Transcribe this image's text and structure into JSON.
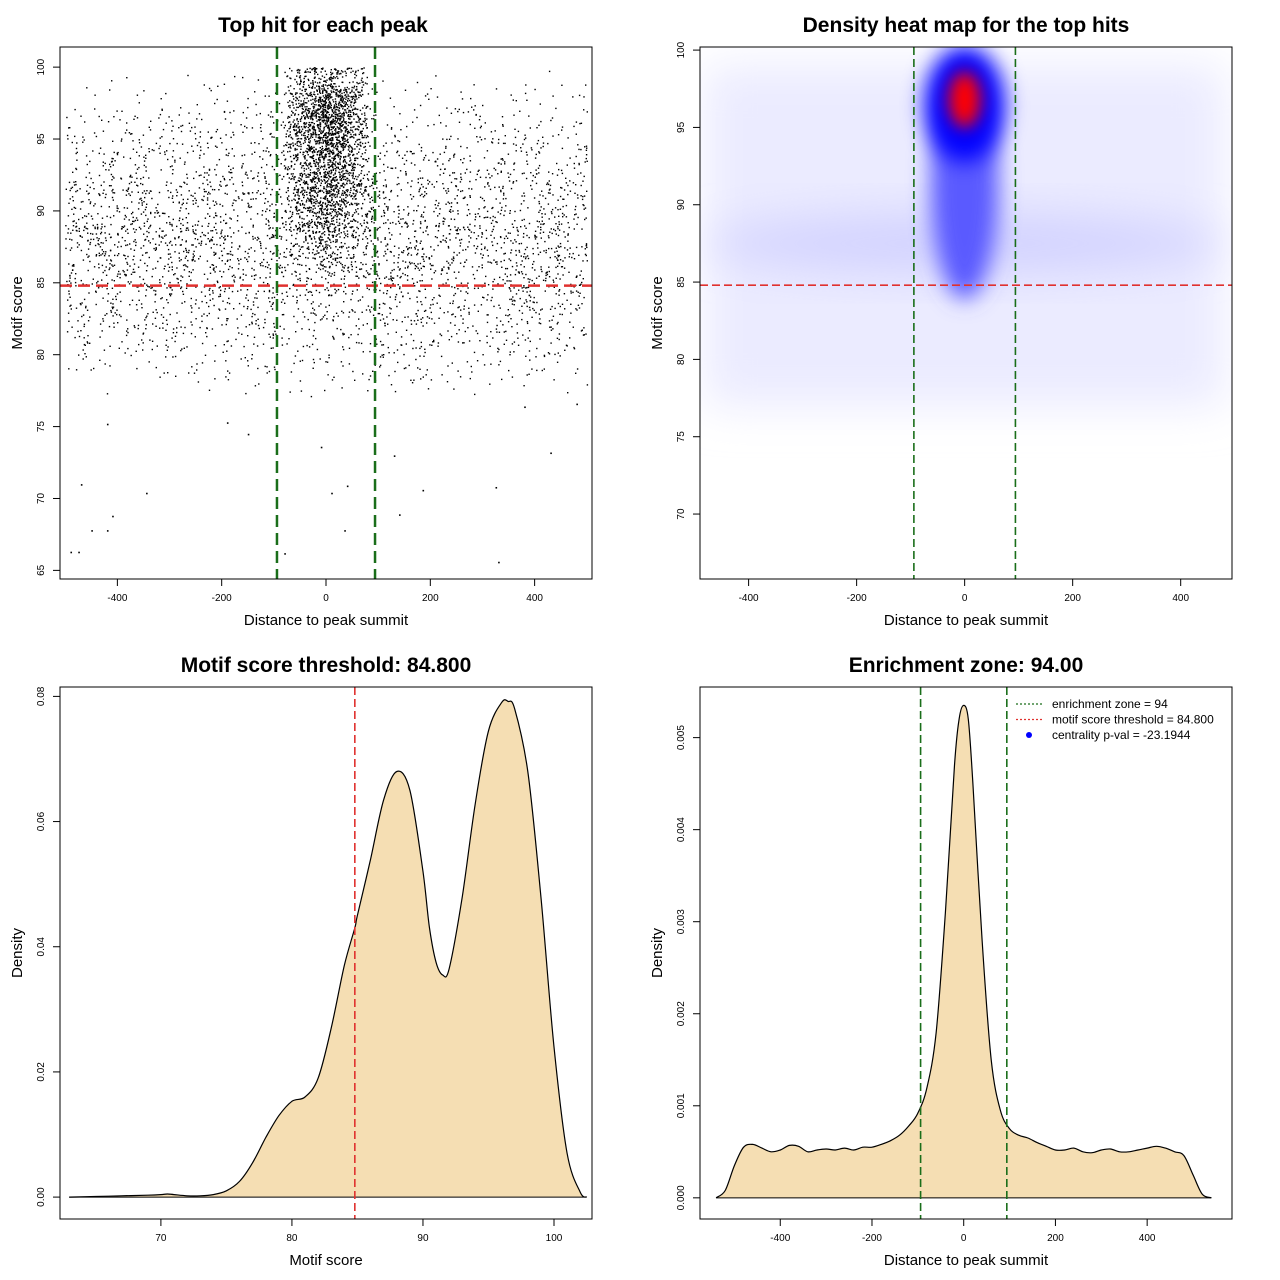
{
  "chart_data": [
    {
      "type": "scatter",
      "title": "Top hit for each peak",
      "xlabel": "Distance to peak summit",
      "ylabel": "Motif score",
      "xlim": [
        -510,
        510
      ],
      "ylim": [
        64.4,
        101.4
      ],
      "xticks": [
        -400,
        -200,
        0,
        200,
        400
      ],
      "xtick_labels": [
        "-400",
        "-200",
        "0",
        "200",
        "400"
      ],
      "yticks": [
        65,
        70,
        75,
        80,
        85,
        90,
        95,
        100
      ],
      "ytick_labels": [
        "65",
        "70",
        "75",
        "80",
        "85",
        "90",
        "95",
        "100"
      ],
      "hline": {
        "y": 84.8,
        "color": "#e0312f"
      },
      "vlines": [
        {
          "x": -94,
          "color": "#1a6e1a"
        },
        {
          "x": 94,
          "color": "#1a6e1a"
        }
      ],
      "point_color": "#000000",
      "background_points": {
        "x_range": [
          -500,
          500
        ],
        "y_range": [
          77,
          100
        ],
        "mode_y": 87.5
      },
      "central_points": {
        "x_range": [
          -90,
          90
        ],
        "y_range": [
          85,
          100
        ],
        "mode_y": 97
      },
      "outliers": [
        {
          "x": -490,
          "y": 66.3
        },
        {
          "x": -475,
          "y": 66.3
        },
        {
          "x": -450,
          "y": 67.8
        },
        {
          "x": -420,
          "y": 67.8
        },
        {
          "x": -410,
          "y": 68.8
        },
        {
          "x": -470,
          "y": 71.0
        },
        {
          "x": -345,
          "y": 70.4
        },
        {
          "x": -420,
          "y": 75.2
        },
        {
          "x": -190,
          "y": 75.3
        },
        {
          "x": -150,
          "y": 74.5
        },
        {
          "x": -80,
          "y": 66.2
        },
        {
          "x": 10,
          "y": 70.4
        },
        {
          "x": 40,
          "y": 70.9
        },
        {
          "x": 35,
          "y": 67.8
        },
        {
          "x": 130,
          "y": 73.0
        },
        {
          "x": 140,
          "y": 68.9
        },
        {
          "x": 185,
          "y": 70.6
        },
        {
          "x": 325,
          "y": 70.8
        },
        {
          "x": 330,
          "y": 65.6
        },
        {
          "x": 430,
          "y": 73.2
        },
        {
          "x": -10,
          "y": 73.6
        },
        {
          "x": 380,
          "y": 76.4
        },
        {
          "x": 480,
          "y": 76.6
        }
      ]
    },
    {
      "type": "heatmap",
      "title": "Density heat map for the top hits",
      "xlabel": "Distance to peak summit",
      "ylabel": "Motif score",
      "xlim": [
        -490,
        495
      ],
      "ylim": [
        65.8,
        100.2
      ],
      "xticks": [
        -400,
        -200,
        0,
        200,
        400
      ],
      "xtick_labels": [
        "-400",
        "-200",
        "0",
        "200",
        "400"
      ],
      "yticks": [
        70,
        75,
        80,
        85,
        90,
        95,
        100
      ],
      "ytick_labels": [
        "70",
        "75",
        "80",
        "85",
        "90",
        "95",
        "100"
      ],
      "hline": {
        "y": 84.8,
        "color": "#e0312f"
      },
      "vlines": [
        {
          "x": -94,
          "color": "#1a6e1a"
        },
        {
          "x": 94,
          "color": "#1a6e1a"
        }
      ],
      "color_scale": [
        "#ffffff",
        "#0000ff",
        "#ff0000"
      ],
      "hotspot": {
        "x": 0,
        "y": 96.8
      },
      "secondary_band_y": 87.5
    },
    {
      "type": "area",
      "title": "Motif score threshold: 84.800",
      "xlabel": "Motif score",
      "ylabel": "Density",
      "xlim": [
        62.3,
        102.9
      ],
      "ylim": [
        -0.0035,
        0.0815
      ],
      "xticks": [
        70,
        80,
        90,
        100
      ],
      "xtick_labels": [
        "70",
        "80",
        "90",
        "100"
      ],
      "yticks": [
        0,
        0.02,
        0.04,
        0.06,
        0.08
      ],
      "ytick_labels": [
        "0.00",
        "0.02",
        "0.04",
        "0.06",
        "0.08"
      ],
      "vline": {
        "x": 84.8,
        "color": "#e0312f"
      },
      "fill": "#f5deb3",
      "x": [
        63,
        65,
        67,
        69,
        70,
        70.5,
        71,
        72,
        73,
        74,
        75,
        76,
        77,
        78,
        79,
        80,
        81,
        82,
        83,
        84,
        84.8,
        85,
        86,
        87,
        88,
        89,
        90,
        90.5,
        91,
        91.5,
        92,
        93,
        94,
        95,
        96,
        96.5,
        97,
        98,
        99,
        100,
        101,
        102,
        102.5
      ],
      "y": [
        0.0,
        0.0001,
        0.0002,
        0.0003,
        0.0004,
        0.0005,
        0.0004,
        0.0002,
        0.0002,
        0.0004,
        0.001,
        0.0025,
        0.0055,
        0.0095,
        0.013,
        0.0153,
        0.016,
        0.019,
        0.027,
        0.037,
        0.043,
        0.045,
        0.054,
        0.0635,
        0.068,
        0.065,
        0.052,
        0.043,
        0.0375,
        0.0355,
        0.0365,
        0.048,
        0.063,
        0.0745,
        0.079,
        0.0792,
        0.078,
        0.068,
        0.048,
        0.024,
        0.007,
        0.0008,
        0.0
      ]
    },
    {
      "type": "area",
      "title": "Enrichment zone: 94.00",
      "xlabel": "Distance to peak summit",
      "ylabel": "Density",
      "xlim": [
        -575,
        585
      ],
      "ylim": [
        -0.00023,
        0.00555
      ],
      "xticks": [
        -400,
        -200,
        0,
        200,
        400
      ],
      "xtick_labels": [
        "-400",
        "-200",
        "0",
        "200",
        "400"
      ],
      "yticks": [
        0,
        0.001,
        0.002,
        0.003,
        0.004,
        0.005
      ],
      "ytick_labels": [
        "0.000",
        "0.001",
        "0.002",
        "0.003",
        "0.004",
        "0.005"
      ],
      "vlines": [
        {
          "x": -94,
          "color": "#1a6e1a"
        },
        {
          "x": 94,
          "color": "#1a6e1a"
        }
      ],
      "fill": "#f5deb3",
      "x": [
        -540,
        -520,
        -500,
        -480,
        -460,
        -440,
        -420,
        -400,
        -380,
        -360,
        -340,
        -320,
        -300,
        -280,
        -260,
        -240,
        -220,
        -200,
        -180,
        -160,
        -140,
        -120,
        -100,
        -80,
        -60,
        -40,
        -20,
        -10,
        0,
        10,
        20,
        40,
        60,
        80,
        100,
        120,
        140,
        160,
        180,
        200,
        220,
        240,
        260,
        280,
        300,
        320,
        340,
        360,
        380,
        400,
        420,
        440,
        460,
        480,
        500,
        520,
        540
      ],
      "y": [
        0.0,
        8e-05,
        0.00035,
        0.00055,
        0.00058,
        0.00054,
        0.0005,
        0.00052,
        0.00057,
        0.00056,
        0.0005,
        0.00052,
        0.00053,
        0.00052,
        0.00054,
        0.00052,
        0.00055,
        0.00055,
        0.00058,
        0.00062,
        0.00068,
        0.00078,
        0.00092,
        0.0012,
        0.0018,
        0.0031,
        0.0047,
        0.0052,
        0.00535,
        0.0052,
        0.0045,
        0.0028,
        0.0015,
        0.00095,
        0.00075,
        0.00068,
        0.00065,
        0.0006,
        0.00056,
        0.00052,
        0.00052,
        0.00054,
        0.0005,
        0.00049,
        0.00052,
        0.00053,
        0.0005,
        0.0005,
        0.00052,
        0.00054,
        0.00056,
        0.00054,
        0.0005,
        0.00046,
        0.00025,
        4e-05,
        0.0
      ],
      "legend": [
        {
          "label": "enrichment zone = 94",
          "color": "#1a6e1a",
          "kind": "dotted-line"
        },
        {
          "label": "motif score threshold = 84.800",
          "color": "#e0312f",
          "kind": "dotted-line"
        },
        {
          "label": "centrality p-val = -23.1944",
          "color": "#0000ff",
          "kind": "point"
        }
      ],
      "legend_position": "top-right"
    }
  ]
}
